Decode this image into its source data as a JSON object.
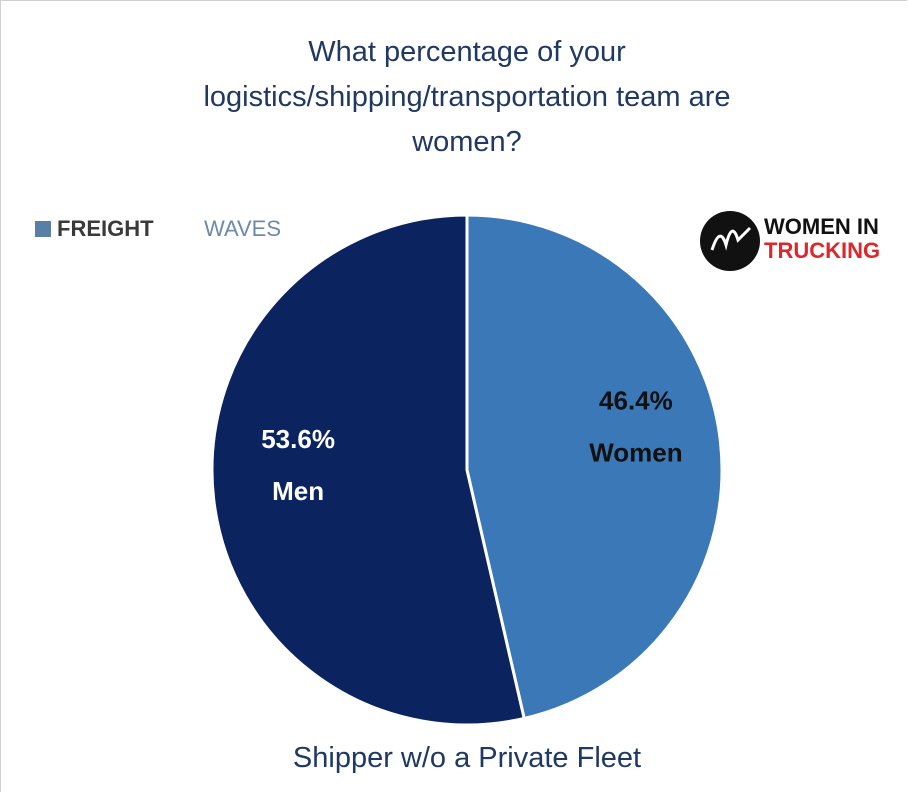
{
  "chart_data": {
    "type": "pie",
    "title": "What percentage of your logistics/shipping/transportation team are women?",
    "subtitle": "Shipper w/o a Private Fleet",
    "categories": [
      "Women",
      "Men"
    ],
    "values": [
      46.4,
      53.6
    ],
    "value_labels": [
      "46.4%",
      "53.6%"
    ],
    "colors": [
      "#3a78b8",
      "#0b2460"
    ],
    "label_colors": [
      "#111111",
      "#ffffff"
    ],
    "start_angle": 0,
    "direction": "clockwise"
  },
  "logos": {
    "freightwaves": {
      "bold": "FREIGHT",
      "light": "WAVES"
    },
    "women_in_trucking": {
      "line1": "WOMEN IN",
      "line2": "TRUCKING"
    }
  }
}
